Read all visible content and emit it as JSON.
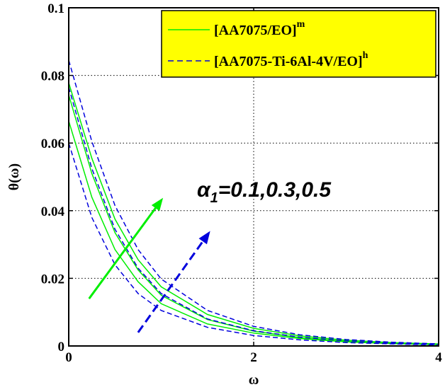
{
  "chart_data": {
    "type": "line",
    "xlabel": "ω",
    "ylabel": "θ(ω)",
    "xlim": [
      0,
      4
    ],
    "ylim": [
      0,
      0.1
    ],
    "xticks": [
      0,
      2,
      4
    ],
    "yticks": [
      0,
      0.02,
      0.04,
      0.06,
      0.08,
      0.1
    ],
    "xtick_labels": [
      "0",
      "2",
      "4"
    ],
    "ytick_labels": [
      "0",
      "0.02",
      "0.04",
      "0.06",
      "0.08",
      "0.1"
    ],
    "grid": true,
    "legend_position": "top-right",
    "legend_background": "#ffff00",
    "legend": [
      {
        "label": "[AA7075/EO]",
        "sup": "m",
        "color": "#00ee00",
        "style": "solid"
      },
      {
        "label": "[AA7075-Ti-6Al-4V/EO]",
        "sup": "h",
        "color": "#0000dd",
        "style": "dashed"
      }
    ],
    "annotation": {
      "text": "=0.1,0.3,0.5",
      "symbol": "α",
      "subscript": "1"
    },
    "series": [
      {
        "legend_index": 0,
        "x": [
          0,
          0.25,
          0.5,
          0.75,
          1,
          1.5,
          2,
          2.5,
          3,
          3.5,
          4
        ],
        "y": [
          0.0665,
          0.044,
          0.0285,
          0.019,
          0.0125,
          0.0065,
          0.0038,
          0.0022,
          0.0012,
          0.0007,
          0.0004
        ]
      },
      {
        "legend_index": 0,
        "x": [
          0,
          0.25,
          0.5,
          0.75,
          1,
          1.5,
          2,
          2.5,
          3,
          3.5,
          4
        ],
        "y": [
          0.0742,
          0.051,
          0.0335,
          0.0225,
          0.015,
          0.0078,
          0.0044,
          0.0025,
          0.0014,
          0.0008,
          0.0005
        ]
      },
      {
        "legend_index": 0,
        "x": [
          0,
          0.25,
          0.5,
          0.75,
          1,
          1.5,
          2,
          2.5,
          3,
          3.5,
          4
        ],
        "y": [
          0.0778,
          0.0555,
          0.0375,
          0.0255,
          0.0175,
          0.0093,
          0.0052,
          0.003,
          0.0017,
          0.001,
          0.0006
        ]
      },
      {
        "legend_index": 1,
        "x": [
          0,
          0.25,
          0.5,
          0.75,
          1,
          1.5,
          2,
          2.5,
          3,
          3.5,
          4
        ],
        "y": [
          0.06,
          0.038,
          0.024,
          0.0155,
          0.0105,
          0.0055,
          0.0031,
          0.0018,
          0.001,
          0.0006,
          0.0003
        ]
      },
      {
        "legend_index": 1,
        "x": [
          0,
          0.25,
          0.5,
          0.75,
          1,
          1.5,
          2,
          2.5,
          3,
          3.5,
          4
        ],
        "y": [
          0.0765,
          0.0525,
          0.0345,
          0.023,
          0.0155,
          0.008,
          0.0045,
          0.0026,
          0.0015,
          0.0008,
          0.0005
        ]
      },
      {
        "legend_index": 1,
        "x": [
          0,
          0.25,
          0.5,
          0.75,
          1,
          1.5,
          2,
          2.5,
          3,
          3.5,
          4
        ],
        "y": [
          0.0845,
          0.0605,
          0.0415,
          0.0285,
          0.0198,
          0.0105,
          0.0058,
          0.0033,
          0.0019,
          0.0011,
          0.0006
        ]
      }
    ],
    "arrows": [
      {
        "color": "#00ee00",
        "style": "solid",
        "from": [
          0.22,
          0.014
        ],
        "to": [
          1.02,
          0.0438
        ]
      },
      {
        "color": "#0000dd",
        "style": "dashed",
        "from": [
          0.75,
          0.004
        ],
        "to": [
          1.53,
          0.034
        ]
      }
    ]
  }
}
